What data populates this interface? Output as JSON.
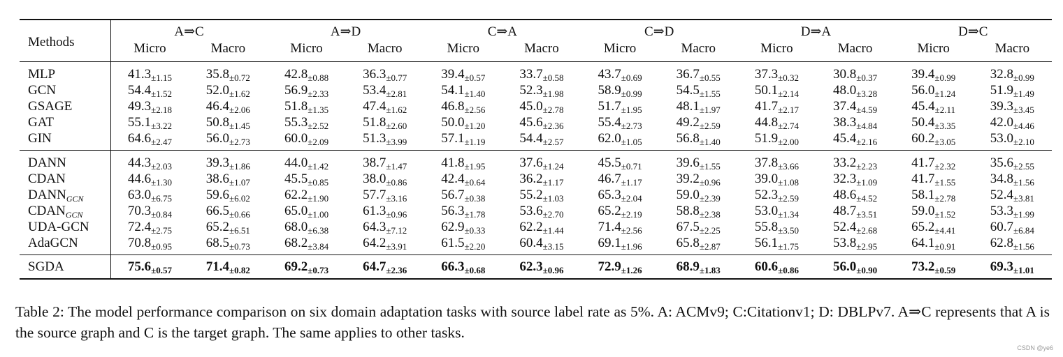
{
  "table": {
    "methods_label": "Methods",
    "tasks": [
      "A⇒C",
      "A⇒D",
      "C⇒A",
      "C⇒D",
      "D⇒A",
      "D⇒C"
    ],
    "micro_label": "Micro",
    "macro_label": "Macro",
    "groups": [
      [
        {
          "name": "MLP",
          "sub": "",
          "cells": [
            [
              "41.3",
              "±1.15"
            ],
            [
              "35.8",
              "±0.72"
            ],
            [
              "42.8",
              "±0.88"
            ],
            [
              "36.3",
              "±0.77"
            ],
            [
              "39.4",
              "±0.57"
            ],
            [
              "33.7",
              "±0.58"
            ],
            [
              "43.7",
              "±0.69"
            ],
            [
              "36.7",
              "±0.55"
            ],
            [
              "37.3",
              "±0.32"
            ],
            [
              "30.8",
              "±0.37"
            ],
            [
              "39.4",
              "±0.99"
            ],
            [
              "32.8",
              "±0.99"
            ]
          ]
        },
        {
          "name": "GCN",
          "sub": "",
          "cells": [
            [
              "54.4",
              "±1.52"
            ],
            [
              "52.0",
              "±1.62"
            ],
            [
              "56.9",
              "±2.33"
            ],
            [
              "53.4",
              "±2.81"
            ],
            [
              "54.1",
              "±1.40"
            ],
            [
              "52.3",
              "±1.98"
            ],
            [
              "58.9",
              "±0.99"
            ],
            [
              "54.5",
              "±1.55"
            ],
            [
              "50.1",
              "±2.14"
            ],
            [
              "48.0",
              "±3.28"
            ],
            [
              "56.0",
              "±1.24"
            ],
            [
              "51.9",
              "±1.49"
            ]
          ]
        },
        {
          "name": "GSAGE",
          "sub": "",
          "cells": [
            [
              "49.3",
              "±2.18"
            ],
            [
              "46.4",
              "±2.06"
            ],
            [
              "51.8",
              "±1.35"
            ],
            [
              "47.4",
              "±1.62"
            ],
            [
              "46.8",
              "±2.56"
            ],
            [
              "45.0",
              "±2.78"
            ],
            [
              "51.7",
              "±1.95"
            ],
            [
              "48.1",
              "±1.97"
            ],
            [
              "41.7",
              "±2.17"
            ],
            [
              "37.4",
              "±4.59"
            ],
            [
              "45.4",
              "±2.11"
            ],
            [
              "39.3",
              "±3.45"
            ]
          ]
        },
        {
          "name": "GAT",
          "sub": "",
          "cells": [
            [
              "55.1",
              "±3.22"
            ],
            [
              "50.8",
              "±1.45"
            ],
            [
              "55.3",
              "±2.52"
            ],
            [
              "51.8",
              "±2.60"
            ],
            [
              "50.0",
              "±1.20"
            ],
            [
              "45.6",
              "±2.36"
            ],
            [
              "55.4",
              "±2.73"
            ],
            [
              "49.2",
              "±2.59"
            ],
            [
              "44.8",
              "±2.74"
            ],
            [
              "38.3",
              "±4.84"
            ],
            [
              "50.4",
              "±3.35"
            ],
            [
              "42.0",
              "±4.46"
            ]
          ]
        },
        {
          "name": "GIN",
          "sub": "",
          "cells": [
            [
              "64.6",
              "±2.47"
            ],
            [
              "56.0",
              "±2.73"
            ],
            [
              "60.0",
              "±2.09"
            ],
            [
              "51.3",
              "±3.99"
            ],
            [
              "57.1",
              "±1.19"
            ],
            [
              "54.4",
              "±2.57"
            ],
            [
              "62.0",
              "±1.05"
            ],
            [
              "56.8",
              "±1.40"
            ],
            [
              "51.9",
              "±2.00"
            ],
            [
              "45.4",
              "±2.16"
            ],
            [
              "60.2",
              "±3.05"
            ],
            [
              "53.0",
              "±2.10"
            ]
          ]
        }
      ],
      [
        {
          "name": "DANN",
          "sub": "",
          "cells": [
            [
              "44.3",
              "±2.03"
            ],
            [
              "39.3",
              "±1.86"
            ],
            [
              "44.0",
              "±1.42"
            ],
            [
              "38.7",
              "±1.47"
            ],
            [
              "41.8",
              "±1.95"
            ],
            [
              "37.6",
              "±1.24"
            ],
            [
              "45.5",
              "±0.71"
            ],
            [
              "39.6",
              "±1.55"
            ],
            [
              "37.8",
              "±3.66"
            ],
            [
              "33.2",
              "±2.23"
            ],
            [
              "41.7",
              "±2.32"
            ],
            [
              "35.6",
              "±2.55"
            ]
          ]
        },
        {
          "name": "CDAN",
          "sub": "",
          "cells": [
            [
              "44.6",
              "±1.30"
            ],
            [
              "38.6",
              "±1.07"
            ],
            [
              "45.5",
              "±0.85"
            ],
            [
              "38.0",
              "±0.86"
            ],
            [
              "42.4",
              "±0.64"
            ],
            [
              "36.2",
              "±1.17"
            ],
            [
              "46.7",
              "±1.17"
            ],
            [
              "39.2",
              "±0.96"
            ],
            [
              "39.0",
              "±1.08"
            ],
            [
              "32.3",
              "±1.09"
            ],
            [
              "41.7",
              "±1.55"
            ],
            [
              "34.8",
              "±1.56"
            ]
          ]
        },
        {
          "name": "DANN",
          "sub": "GCN",
          "cells": [
            [
              "63.0",
              "±6.75"
            ],
            [
              "59.6",
              "±6.02"
            ],
            [
              "62.2",
              "±1.90"
            ],
            [
              "57.7",
              "±3.16"
            ],
            [
              "56.7",
              "±0.38"
            ],
            [
              "55.2",
              "±1.03"
            ],
            [
              "65.3",
              "±2.04"
            ],
            [
              "59.0",
              "±2.39"
            ],
            [
              "52.3",
              "±2.59"
            ],
            [
              "48.6",
              "±4.52"
            ],
            [
              "58.1",
              "±2.78"
            ],
            [
              "52.4",
              "±3.81"
            ]
          ]
        },
        {
          "name": "CDAN",
          "sub": "GCN",
          "cells": [
            [
              "70.3",
              "±0.84"
            ],
            [
              "66.5",
              "±0.66"
            ],
            [
              "65.0",
              "±1.00"
            ],
            [
              "61.3",
              "±0.96"
            ],
            [
              "56.3",
              "±1.78"
            ],
            [
              "53.6",
              "±2.70"
            ],
            [
              "65.2",
              "±2.19"
            ],
            [
              "58.8",
              "±2.38"
            ],
            [
              "53.0",
              "±1.34"
            ],
            [
              "48.7",
              "±3.51"
            ],
            [
              "59.0",
              "±1.52"
            ],
            [
              "53.3",
              "±1.99"
            ]
          ]
        },
        {
          "name": "UDA-GCN",
          "sub": "",
          "cells": [
            [
              "72.4",
              "±2.75"
            ],
            [
              "65.2",
              "±6.51"
            ],
            [
              "68.0",
              "±6.38"
            ],
            [
              "64.3",
              "±7.12"
            ],
            [
              "62.9",
              "±0.33"
            ],
            [
              "62.2",
              "±1.44"
            ],
            [
              "71.4",
              "±2.56"
            ],
            [
              "67.5",
              "±2.25"
            ],
            [
              "55.8",
              "±3.50"
            ],
            [
              "52.4",
              "±2.68"
            ],
            [
              "65.2",
              "±4.41"
            ],
            [
              "60.7",
              "±6.84"
            ]
          ]
        },
        {
          "name": "AdaGCN",
          "sub": "",
          "cells": [
            [
              "70.8",
              "±0.95"
            ],
            [
              "68.5",
              "±0.73"
            ],
            [
              "68.2",
              "±3.84"
            ],
            [
              "64.2",
              "±3.91"
            ],
            [
              "61.5",
              "±2.20"
            ],
            [
              "60.4",
              "±3.15"
            ],
            [
              "69.1",
              "±1.96"
            ],
            [
              "65.8",
              "±2.87"
            ],
            [
              "56.1",
              "±1.75"
            ],
            [
              "53.8",
              "±2.95"
            ],
            [
              "64.1",
              "±0.91"
            ],
            [
              "62.8",
              "±1.56"
            ]
          ]
        }
      ],
      [
        {
          "name": "SGDA",
          "sub": "",
          "cells": [
            [
              "75.6",
              "±0.57"
            ],
            [
              "71.4",
              "±0.82"
            ],
            [
              "69.2",
              "±0.73"
            ],
            [
              "64.7",
              "±2.36"
            ],
            [
              "66.3",
              "±0.68"
            ],
            [
              "62.3",
              "±0.96"
            ],
            [
              "72.9",
              "±1.26"
            ],
            [
              "68.9",
              "±1.83"
            ],
            [
              "60.6",
              "±0.86"
            ],
            [
              "56.0",
              "±0.90"
            ],
            [
              "73.2",
              "±0.59"
            ],
            [
              "69.3",
              "±1.01"
            ]
          ]
        }
      ]
    ]
  },
  "caption": "Table 2: The model performance comparison on six domain adaptation tasks with source label rate as 5%. A: ACMv9; C:Citationv1; D: DBLPv7. A⇒C represents that A is the source graph and C is the target graph. The same applies to other tasks.",
  "watermark": "CSDN @ye6"
}
